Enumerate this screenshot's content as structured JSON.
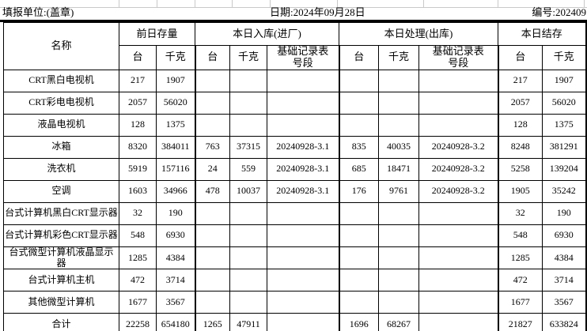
{
  "meta": {
    "unit_label": "填报单位:(盖章)",
    "date_label": "日期:2024年09月28日",
    "serial_label": "编号:202409"
  },
  "colors": {
    "border": "#000000",
    "gridline": "#c9c9c9",
    "background": "#ffffff"
  },
  "table": {
    "header": {
      "name": "名称",
      "groups": [
        {
          "label": "前日存量",
          "cols": [
            "台",
            "千克"
          ]
        },
        {
          "label": "本日入库(进厂)",
          "cols": [
            "台",
            "千克",
            "基础记录表\n号段"
          ]
        },
        {
          "label": "本日处理(出库)",
          "cols": [
            "台",
            "千克",
            "基础记录表\n号段"
          ]
        },
        {
          "label": "本日结存",
          "cols": [
            "台",
            "千克"
          ]
        }
      ]
    },
    "rows": [
      {
        "name": "CRT黑白电视机",
        "cells": [
          "217",
          "1907",
          "",
          "",
          "",
          "",
          "",
          "",
          "217",
          "1907"
        ]
      },
      {
        "name": "CRT彩电电视机",
        "cells": [
          "2057",
          "56020",
          "",
          "",
          "",
          "",
          "",
          "",
          "2057",
          "56020"
        ]
      },
      {
        "name": "液晶电视机",
        "cells": [
          "128",
          "1375",
          "",
          "",
          "",
          "",
          "",
          "",
          "128",
          "1375"
        ]
      },
      {
        "name": "冰箱",
        "cells": [
          "8320",
          "384011",
          "763",
          "37315",
          "20240928-3.1",
          "835",
          "40035",
          "20240928-3.2",
          "8248",
          "381291"
        ]
      },
      {
        "name": "洗衣机",
        "cells": [
          "5919",
          "157116",
          "24",
          "559",
          "20240928-3.1",
          "685",
          "18471",
          "20240928-3.2",
          "5258",
          "139204"
        ]
      },
      {
        "name": "空调",
        "cells": [
          "1603",
          "34966",
          "478",
          "10037",
          "20240928-3.1",
          "176",
          "9761",
          "20240928-3.2",
          "1905",
          "35242"
        ]
      },
      {
        "name": "台式计算机黑白CRT显示器",
        "cells": [
          "32",
          "190",
          "",
          "",
          "",
          "",
          "",
          "",
          "32",
          "190"
        ]
      },
      {
        "name": "台式计算机彩色CRT显示器",
        "cells": [
          "548",
          "6930",
          "",
          "",
          "",
          "",
          "",
          "",
          "548",
          "6930"
        ]
      },
      {
        "name": "台式微型计算机液晶显示器",
        "cells": [
          "1285",
          "4384",
          "",
          "",
          "",
          "",
          "",
          "",
          "1285",
          "4384"
        ]
      },
      {
        "name": "台式计算机主机",
        "cells": [
          "472",
          "3714",
          "",
          "",
          "",
          "",
          "",
          "",
          "472",
          "3714"
        ]
      },
      {
        "name": "其他微型计算机",
        "cells": [
          "1677",
          "3567",
          "",
          "",
          "",
          "",
          "",
          "",
          "1677",
          "3567"
        ]
      },
      {
        "name": "合计",
        "cells": [
          "22258",
          "654180",
          "1265",
          "47911",
          "",
          "1696",
          "68267",
          "",
          "21827",
          "633824"
        ]
      }
    ]
  }
}
